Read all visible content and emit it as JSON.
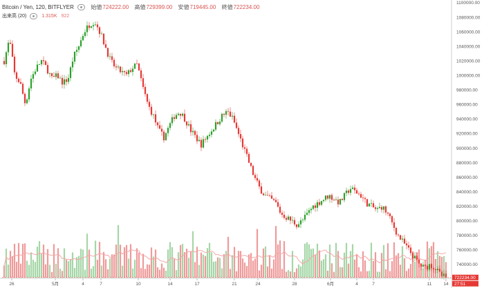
{
  "header": {
    "title": "Bitcoin / Yen, 120, BITFLYER",
    "open_label": "始値",
    "open_value": "724222.00",
    "high_label": "高値",
    "high_value": "729399.00",
    "low_label": "安値",
    "low_value": "719445.00",
    "close_label": "終値",
    "close_value": "722234.00"
  },
  "volume_indicator": {
    "label": "出来高 (20)",
    "value": "1.315K",
    "value2": "922"
  },
  "colors": {
    "up": "#2ca02c",
    "down": "#e53935",
    "up_vol": "#a5d6a7",
    "down_vol": "#ef9a9a",
    "ma": "#f4a6a6"
  },
  "last_price_tags": [
    "722234.00",
    "27:51"
  ],
  "chart_data": {
    "type": "candlestick",
    "y_ticks": [
      "1100000.00",
      "1080000.00",
      "1060000.00",
      "1040000.00",
      "1020000.00",
      "1000000.00",
      "980000.00",
      "960000.00",
      "940000.00",
      "920000.00",
      "900000.00",
      "880000.00",
      "860000.00",
      "840000.00",
      "820000.00",
      "800000.00",
      "780000.00",
      "760000.00",
      "740000.00"
    ],
    "ylim": [
      722000,
      1100000
    ],
    "x_ticks": [
      "26",
      "5月",
      "4",
      "7",
      "10",
      "14",
      "17",
      "21",
      "24",
      "28",
      "6月",
      "4",
      "7",
      "11",
      "14"
    ],
    "close_path": [
      [
        0,
        1020000
      ],
      [
        2,
        1050000
      ],
      [
        4,
        1000000
      ],
      [
        6,
        990000
      ],
      [
        8,
        960000
      ],
      [
        10,
        995000
      ],
      [
        12,
        1010000
      ],
      [
        14,
        1020000
      ],
      [
        16,
        1010000
      ],
      [
        18,
        995000
      ],
      [
        20,
        1000000
      ],
      [
        22,
        990000
      ],
      [
        24,
        995000
      ],
      [
        26,
        1025000
      ],
      [
        28,
        1040000
      ],
      [
        30,
        1060000
      ],
      [
        32,
        1070000
      ],
      [
        34,
        1075000
      ],
      [
        36,
        1060000
      ],
      [
        38,
        1040000
      ],
      [
        40,
        1020000
      ],
      [
        42,
        1010000
      ],
      [
        44,
        1005000
      ],
      [
        46,
        1000000
      ],
      [
        48,
        1010000
      ],
      [
        50,
        1015000
      ],
      [
        52,
        985000
      ],
      [
        54,
        960000
      ],
      [
        56,
        945000
      ],
      [
        58,
        925000
      ],
      [
        60,
        915000
      ],
      [
        62,
        930000
      ],
      [
        64,
        945000
      ],
      [
        66,
        950000
      ],
      [
        68,
        940000
      ],
      [
        70,
        925000
      ],
      [
        72,
        915000
      ],
      [
        74,
        905000
      ],
      [
        76,
        915000
      ],
      [
        78,
        925000
      ],
      [
        80,
        935000
      ],
      [
        82,
        945000
      ],
      [
        84,
        950000
      ],
      [
        86,
        940000
      ],
      [
        88,
        920000
      ],
      [
        90,
        900000
      ],
      [
        92,
        880000
      ],
      [
        94,
        860000
      ],
      [
        96,
        845000
      ],
      [
        98,
        835000
      ],
      [
        100,
        830000
      ],
      [
        102,
        825000
      ],
      [
        104,
        810000
      ],
      [
        106,
        805000
      ],
      [
        108,
        800000
      ],
      [
        110,
        795000
      ],
      [
        112,
        800000
      ],
      [
        114,
        810000
      ],
      [
        116,
        820000
      ],
      [
        118,
        825000
      ],
      [
        120,
        830000
      ],
      [
        122,
        835000
      ],
      [
        124,
        830000
      ],
      [
        126,
        825000
      ],
      [
        128,
        835000
      ],
      [
        130,
        845000
      ],
      [
        132,
        840000
      ],
      [
        134,
        835000
      ],
      [
        136,
        825000
      ],
      [
        138,
        820000
      ],
      [
        140,
        815000
      ],
      [
        142,
        820000
      ],
      [
        144,
        810000
      ],
      [
        146,
        795000
      ],
      [
        148,
        780000
      ],
      [
        150,
        770000
      ],
      [
        152,
        760000
      ],
      [
        154,
        750000
      ],
      [
        156,
        740000
      ],
      [
        158,
        735000
      ],
      [
        160,
        740000
      ],
      [
        162,
        735000
      ],
      [
        164,
        725000
      ],
      [
        166,
        722234
      ]
    ]
  }
}
